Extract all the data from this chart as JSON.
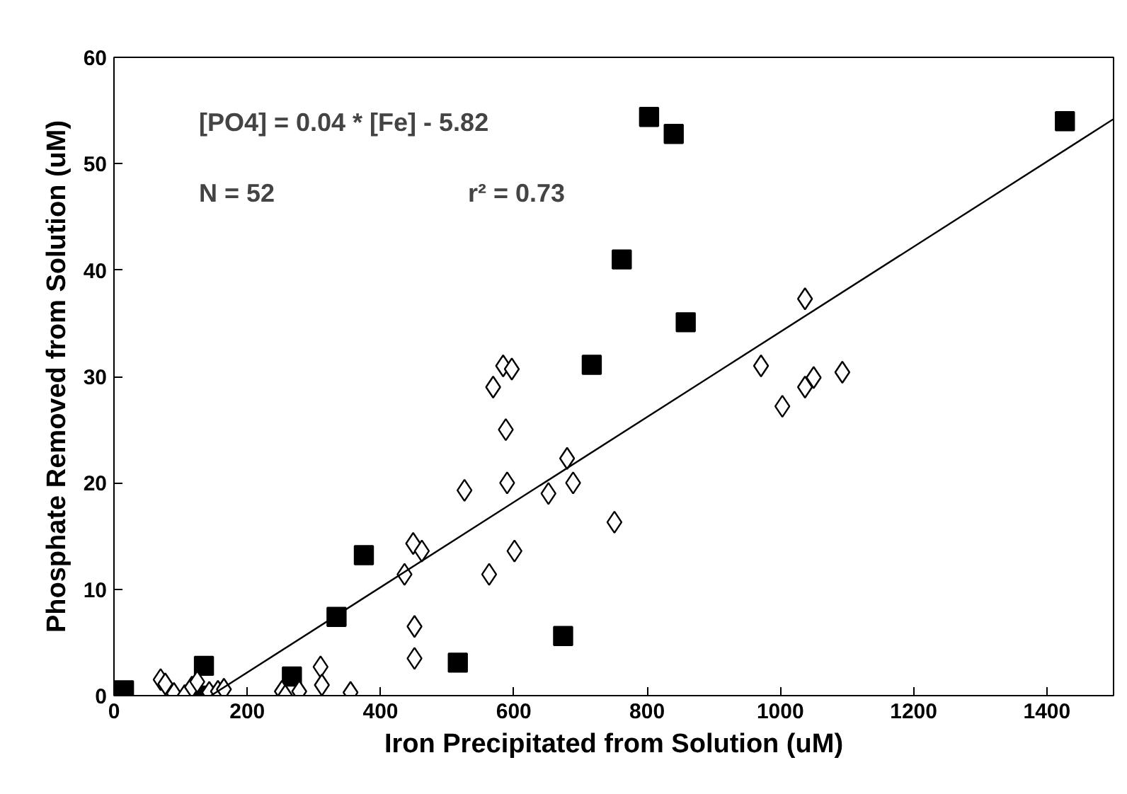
{
  "chart_data": {
    "type": "scatter",
    "xlabel": "Iron Precipitated from Solution (uM)",
    "ylabel": "Phosphate Removed from Solution (uM)",
    "xlim": [
      0,
      1500
    ],
    "xticks": [
      0,
      200,
      400,
      600,
      800,
      1000,
      1200,
      1400
    ],
    "ylim": [
      0,
      60
    ],
    "yticks": [
      0,
      10,
      20,
      30,
      40,
      50,
      60
    ],
    "grid": false,
    "annotations": [
      "[PO4] = 0.04 * [Fe] - 5.82",
      "N = 52",
      "r² = 0.73"
    ],
    "series": [
      {
        "color": "#000000",
        "marker": "square",
        "x": [
          15,
          135,
          135,
          267,
          334,
          375,
          516,
          674,
          717,
          762,
          803,
          840,
          858,
          1427
        ],
        "values": [
          0.5,
          2.8,
          0,
          1.8,
          7.4,
          13.2,
          3.1,
          5.6,
          31.1,
          41,
          54.4,
          52.8,
          35.1,
          54
        ]
      },
      {
        "color": "#000000",
        "marker": "diamond",
        "x": [
          70,
          77,
          90,
          106,
          117,
          125,
          143,
          156,
          165,
          252,
          257,
          278,
          310,
          312,
          355,
          436,
          449,
          451,
          451,
          462,
          526,
          563,
          569,
          584,
          588,
          590,
          597,
          601,
          652,
          680,
          689,
          751,
          971,
          1003,
          1037,
          1037,
          1050,
          1093
        ],
        "values": [
          1.5,
          1.1,
          0.2,
          0,
          0.8,
          1.3,
          0.3,
          0.4,
          0.6,
          0.4,
          0,
          0.4,
          2.7,
          1,
          0.3,
          11.4,
          14.3,
          6.5,
          3.5,
          13.6,
          19.3,
          11.4,
          29,
          31,
          25,
          20,
          30.7,
          13.6,
          19,
          22.3,
          20,
          16.3,
          31,
          27.2,
          29,
          37.3,
          29.9,
          30.4
        ]
      },
      {
        "type": "line",
        "color": "#000000",
        "marker": "none",
        "x": [
          145.5,
          1500
        ],
        "values": [
          0,
          54.2
        ]
      }
    ]
  }
}
